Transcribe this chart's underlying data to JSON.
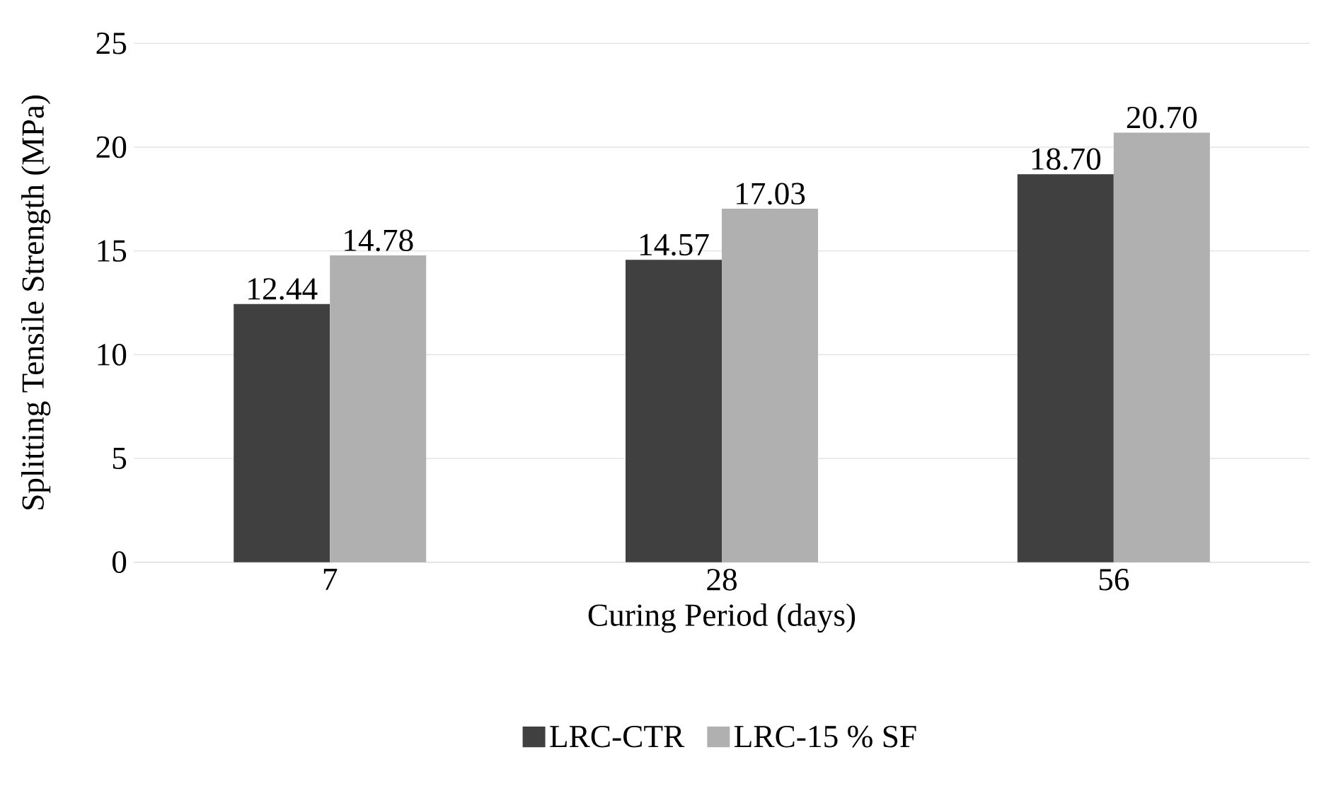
{
  "chart_data": {
    "type": "bar",
    "categories": [
      "7",
      "28",
      "56"
    ],
    "xlabel": "Curing Period (days)",
    "ylabel": "Splitting Tensile Strength (MPa)",
    "ylim": [
      0,
      25
    ],
    "yticks": [
      0,
      5,
      10,
      15,
      20,
      25
    ],
    "grid": "y",
    "legend": "bottom",
    "series": [
      {
        "name": "LRC-CTR",
        "color": "#404040",
        "values": [
          12.44,
          14.57,
          18.7
        ],
        "value_labels": [
          "12.44",
          "14.57",
          "18.70"
        ]
      },
      {
        "name": "LRC-15 % SF",
        "color": "#b0b0b0",
        "values": [
          14.78,
          17.03,
          20.7
        ],
        "value_labels": [
          "14.78",
          "17.03",
          "20.70"
        ]
      }
    ]
  }
}
